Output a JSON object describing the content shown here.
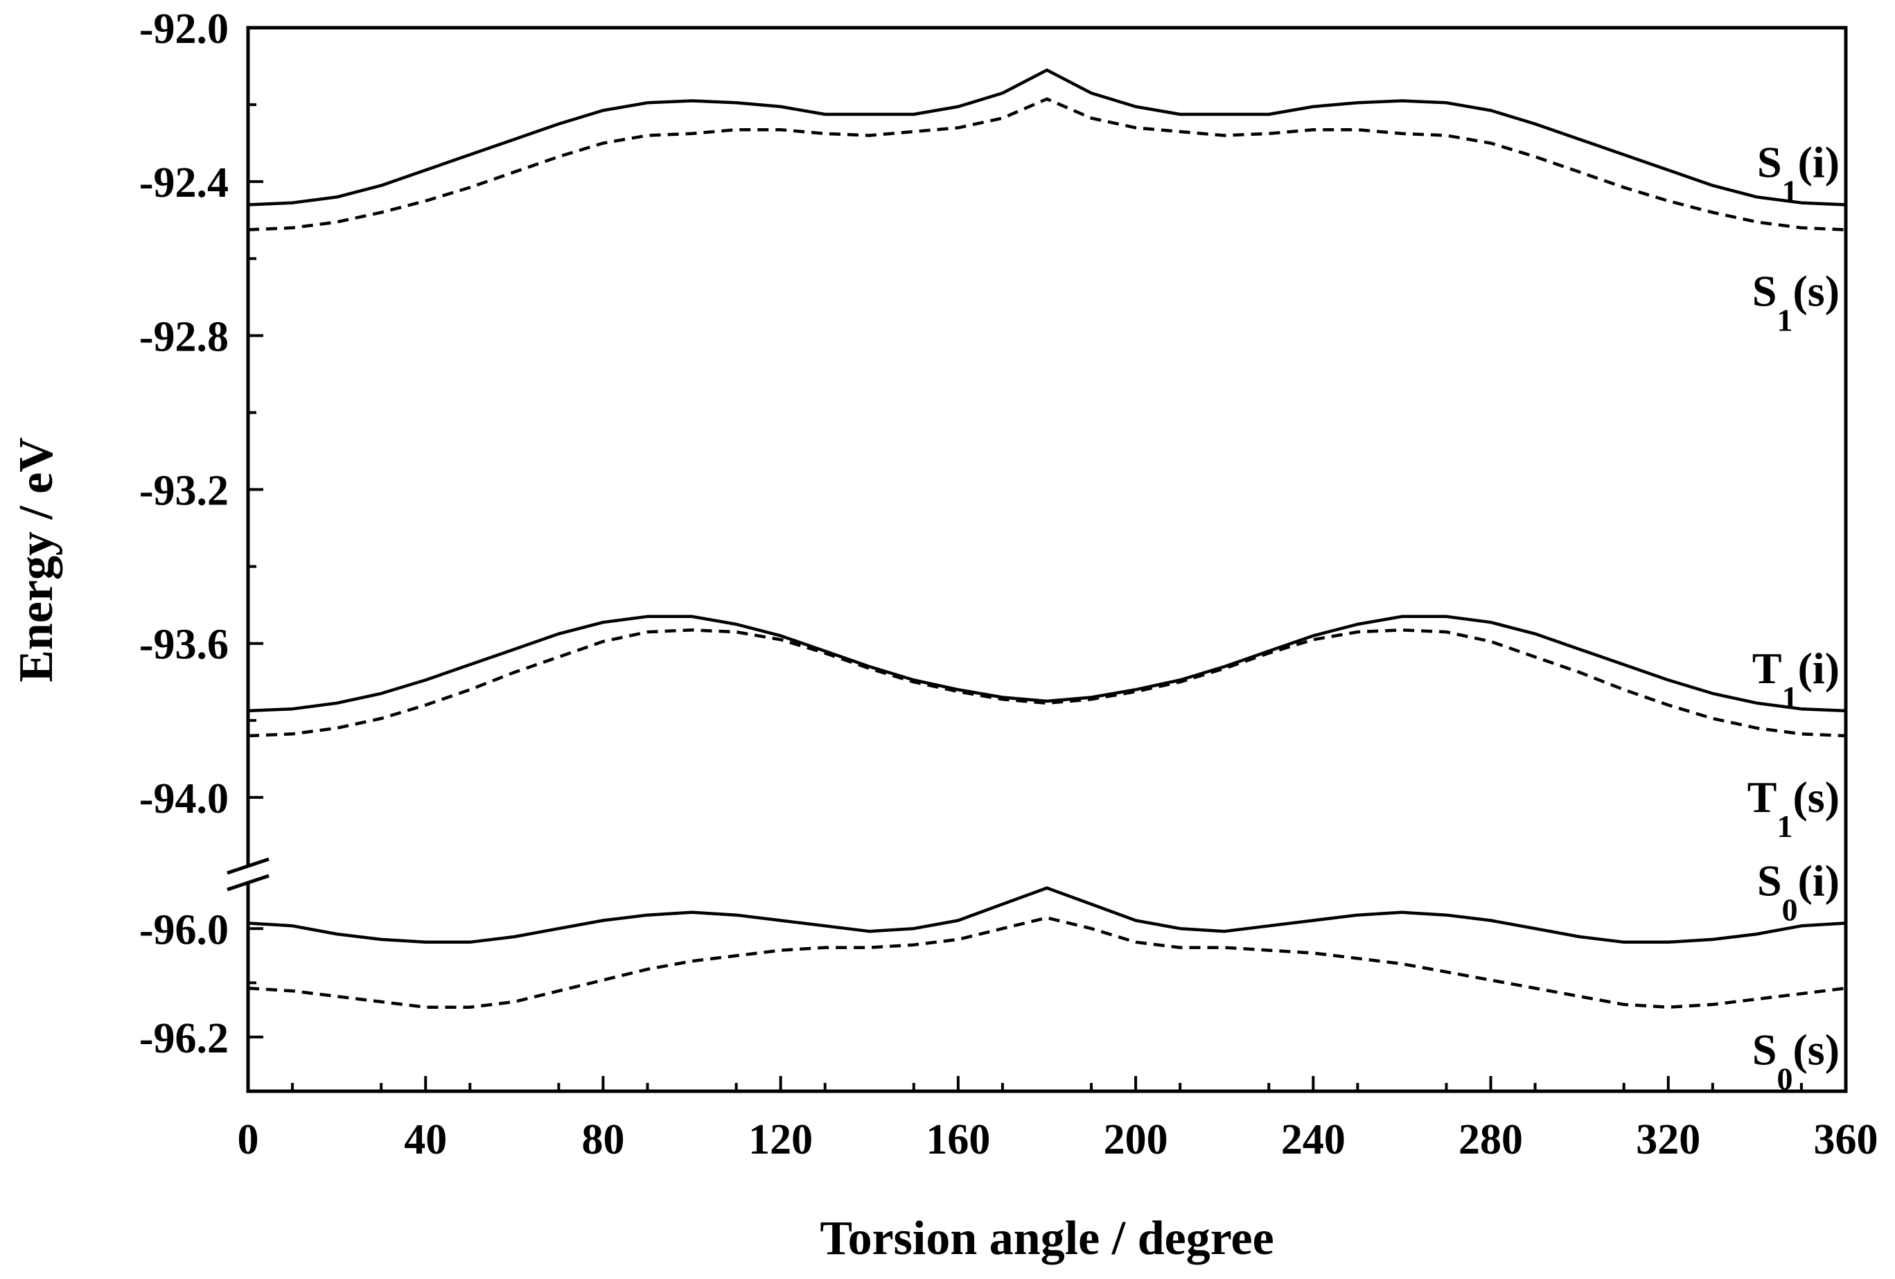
{
  "chart_data": {
    "type": "line",
    "xlabel": "Torsion angle / degree",
    "ylabel": "Energy / eV",
    "xlim": [
      0,
      360
    ],
    "x_ticks": [
      0,
      40,
      80,
      120,
      160,
      200,
      240,
      280,
      320,
      360
    ],
    "x_tick_labels": [
      "0",
      "40",
      "80",
      "120",
      "160",
      "200",
      "240",
      "280",
      "320",
      "360"
    ],
    "y_axis_break": {
      "from": -94.2,
      "to": -95.9
    },
    "y_segments": [
      {
        "ylim": [
          -94.2,
          -92.0
        ],
        "tick_values": [
          -92.0,
          -92.4,
          -92.8,
          -93.2,
          -93.6,
          -94.0
        ],
        "tick_labels": [
          "-92.0",
          "-92.4",
          "-92.8",
          "-93.2",
          "-93.6",
          "-94.0"
        ]
      },
      {
        "ylim": [
          -96.3,
          -95.9
        ],
        "tick_values": [
          -96.0,
          -96.2
        ],
        "tick_labels": [
          "-96.0",
          "-96.2"
        ]
      }
    ],
    "grid": false,
    "x": [
      0,
      10,
      20,
      30,
      40,
      50,
      60,
      70,
      80,
      90,
      100,
      110,
      120,
      130,
      140,
      150,
      160,
      170,
      180,
      190,
      200,
      210,
      220,
      230,
      240,
      250,
      260,
      270,
      280,
      290,
      300,
      310,
      320,
      330,
      340,
      350,
      360
    ],
    "series": [
      {
        "label_main": "S",
        "label_sub": "1",
        "label_suffix": "(i)",
        "style": "solid",
        "values": [
          -92.46,
          -92.455,
          -92.44,
          -92.41,
          -92.37,
          -92.33,
          -92.29,
          -92.25,
          -92.215,
          -92.195,
          -92.19,
          -92.195,
          -92.205,
          -92.225,
          -92.225,
          -92.225,
          -92.205,
          -92.17,
          -92.11,
          -92.17,
          -92.205,
          -92.225,
          -92.225,
          -92.225,
          -92.205,
          -92.195,
          -92.19,
          -92.195,
          -92.215,
          -92.25,
          -92.29,
          -92.33,
          -92.37,
          -92.41,
          -92.44,
          -92.455,
          -92.46
        ]
      },
      {
        "label_main": "S",
        "label_sub": "1",
        "label_suffix": "(s)",
        "style": "dashed",
        "values": [
          -92.525,
          -92.52,
          -92.505,
          -92.48,
          -92.45,
          -92.415,
          -92.375,
          -92.335,
          -92.3,
          -92.28,
          -92.275,
          -92.265,
          -92.265,
          -92.275,
          -92.28,
          -92.27,
          -92.26,
          -92.235,
          -92.185,
          -92.235,
          -92.26,
          -92.27,
          -92.28,
          -92.275,
          -92.265,
          -92.265,
          -92.275,
          -92.28,
          -92.3,
          -92.335,
          -92.375,
          -92.415,
          -92.45,
          -92.48,
          -92.505,
          -92.52,
          -92.525
        ]
      },
      {
        "label_main": "T",
        "label_sub": "1",
        "label_suffix": "(i)",
        "style": "solid",
        "values": [
          -93.775,
          -93.77,
          -93.755,
          -93.73,
          -93.695,
          -93.655,
          -93.615,
          -93.575,
          -93.545,
          -93.53,
          -93.53,
          -93.55,
          -93.58,
          -93.62,
          -93.66,
          -93.695,
          -93.72,
          -93.74,
          -93.75,
          -93.74,
          -93.72,
          -93.695,
          -93.66,
          -93.62,
          -93.58,
          -93.55,
          -93.53,
          -93.53,
          -93.545,
          -93.575,
          -93.615,
          -93.655,
          -93.695,
          -93.73,
          -93.755,
          -93.77,
          -93.775
        ]
      },
      {
        "label_main": "T",
        "label_sub": "1",
        "label_suffix": "(s)",
        "style": "dashed",
        "values": [
          -93.84,
          -93.835,
          -93.82,
          -93.795,
          -93.76,
          -93.72,
          -93.675,
          -93.635,
          -93.595,
          -93.57,
          -93.565,
          -93.57,
          -93.59,
          -93.625,
          -93.665,
          -93.7,
          -93.725,
          -93.745,
          -93.755,
          -93.745,
          -93.725,
          -93.7,
          -93.665,
          -93.625,
          -93.59,
          -93.57,
          -93.565,
          -93.57,
          -93.595,
          -93.635,
          -93.675,
          -93.72,
          -93.76,
          -93.795,
          -93.82,
          -93.835,
          -93.84
        ]
      },
      {
        "label_main": "S",
        "label_sub": "0",
        "label_suffix": "(i)",
        "style": "solid",
        "values": [
          -95.99,
          -95.995,
          -96.01,
          -96.02,
          -96.025,
          -96.025,
          -96.015,
          -96.0,
          -95.985,
          -95.975,
          -95.97,
          -95.975,
          -95.985,
          -95.995,
          -96.005,
          -96.0,
          -95.985,
          -95.955,
          -95.925,
          -95.955,
          -95.985,
          -96.0,
          -96.005,
          -95.995,
          -95.985,
          -95.975,
          -95.97,
          -95.975,
          -95.985,
          -96.0,
          -96.015,
          -96.025,
          -96.025,
          -96.02,
          -96.01,
          -95.995,
          -95.99
        ]
      },
      {
        "label_main": "S",
        "label_sub": "0",
        "label_suffix": "(s)",
        "style": "dashed",
        "values": [
          -96.11,
          -96.115,
          -96.125,
          -96.135,
          -96.145,
          -96.145,
          -96.135,
          -96.115,
          -96.095,
          -96.075,
          -96.06,
          -96.05,
          -96.04,
          -96.035,
          -96.035,
          -96.03,
          -96.02,
          -96.0,
          -95.98,
          -96.0,
          -96.025,
          -96.035,
          -96.035,
          -96.04,
          -96.045,
          -96.055,
          -96.065,
          -96.08,
          -96.095,
          -96.11,
          -96.125,
          -96.14,
          -96.145,
          -96.14,
          -96.13,
          -96.12,
          -96.11
        ]
      }
    ]
  }
}
